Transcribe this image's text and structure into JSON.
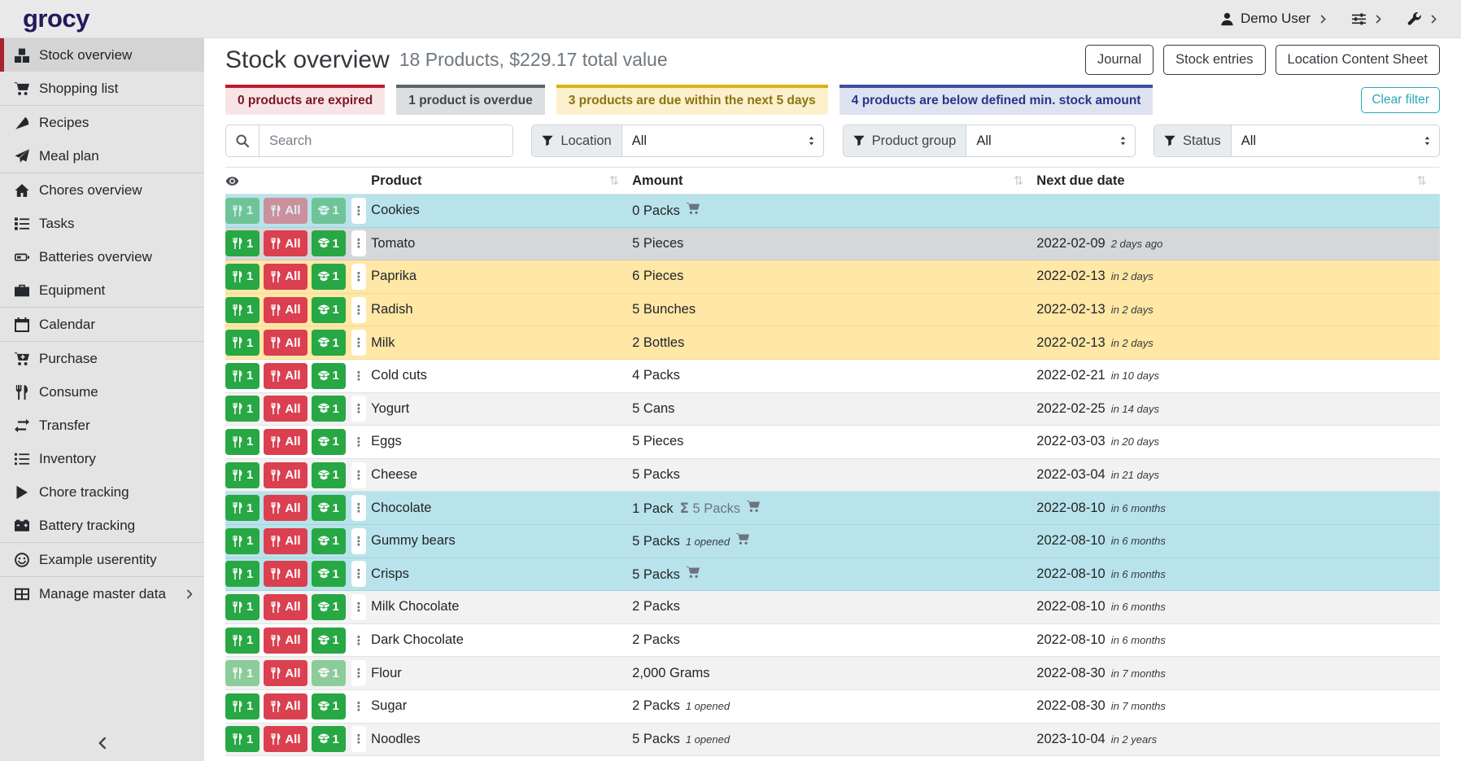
{
  "navbar": {
    "logo": "grocy",
    "user": {
      "label": "Demo User",
      "icon": "user-icon"
    },
    "menus": [
      {
        "icon": "sliders-icon"
      },
      {
        "icon": "wrench-icon"
      }
    ]
  },
  "sidebar": {
    "items": [
      {
        "label": "Stock overview",
        "icon": "boxes-icon",
        "active": true
      },
      {
        "label": "Shopping list",
        "icon": "shopping-cart-icon",
        "divider_after": true
      },
      {
        "label": "Recipes",
        "icon": "pizza-icon"
      },
      {
        "label": "Meal plan",
        "icon": "paper-plane-icon",
        "divider_after": true
      },
      {
        "label": "Chores overview",
        "icon": "home-icon"
      },
      {
        "label": "Tasks",
        "icon": "tasks-icon"
      },
      {
        "label": "Batteries overview",
        "icon": "battery-icon"
      },
      {
        "label": "Equipment",
        "icon": "toolbox-icon",
        "divider_after": true
      },
      {
        "label": "Calendar",
        "icon": "calendar-icon",
        "divider_after": true
      },
      {
        "label": "Purchase",
        "icon": "cart-plus-icon"
      },
      {
        "label": "Consume",
        "icon": "utensils-icon"
      },
      {
        "label": "Transfer",
        "icon": "transfer-icon"
      },
      {
        "label": "Inventory",
        "icon": "list-icon"
      },
      {
        "label": "Chore tracking",
        "icon": "play-icon"
      },
      {
        "label": "Battery tracking",
        "icon": "car-battery-icon",
        "divider_after": true
      },
      {
        "label": "Example userentity",
        "icon": "smiley-icon",
        "divider_after": true
      },
      {
        "label": "Manage master data",
        "icon": "table-icon",
        "chevron": true
      }
    ]
  },
  "page": {
    "title": "Stock overview",
    "subtitle": "18 Products, $229.17 total value",
    "actions": [
      "Journal",
      "Stock entries",
      "Location Content Sheet"
    ],
    "clear_filter": "Clear filter"
  },
  "status_chips": [
    {
      "label": "0 products are expired",
      "type": "expired"
    },
    {
      "label": "1 product is overdue",
      "type": "overdue"
    },
    {
      "label": "3 products are due within the next 5 days",
      "type": "due-soon"
    },
    {
      "label": "4 products are below defined min. stock amount",
      "type": "below-min"
    }
  ],
  "filters": {
    "search_placeholder": "Search",
    "selects": [
      {
        "label": "Location",
        "value": "All"
      },
      {
        "label": "Product group",
        "value": "All"
      },
      {
        "label": "Status",
        "value": "All"
      }
    ]
  },
  "table": {
    "columns": [
      "Product",
      "Amount",
      "Next due date"
    ],
    "quick_buttons": {
      "consume_one": "1",
      "consume_all": "All",
      "open_one": "1"
    },
    "sum_symbol": "Σ",
    "rows": [
      {
        "product": "Cookies",
        "amount": "0 Packs",
        "cart": true,
        "status": "below-min",
        "btn_faded": [
          true,
          true,
          true
        ]
      },
      {
        "product": "Tomato",
        "amount": "5 Pieces",
        "due": "2022-02-09",
        "due_note": "2 days ago",
        "status": "overdue"
      },
      {
        "product": "Paprika",
        "amount": "6 Pieces",
        "due": "2022-02-13",
        "due_note": "in 2 days",
        "status": "due-soon"
      },
      {
        "product": "Radish",
        "amount": "5 Bunches",
        "due": "2022-02-13",
        "due_note": "in 2 days",
        "status": "due-soon"
      },
      {
        "product": "Milk",
        "amount": "2 Bottles",
        "due": "2022-02-13",
        "due_note": "in 2 days",
        "status": "due-soon"
      },
      {
        "product": "Cold cuts",
        "amount": "4 Packs",
        "due": "2022-02-21",
        "due_note": "in 10 days"
      },
      {
        "product": "Yogurt",
        "amount": "5 Cans",
        "due": "2022-02-25",
        "due_note": "in 14 days"
      },
      {
        "product": "Eggs",
        "amount": "5 Pieces",
        "due": "2022-03-03",
        "due_note": "in 20 days"
      },
      {
        "product": "Cheese",
        "amount": "5 Packs",
        "due": "2022-03-04",
        "due_note": "in 21 days"
      },
      {
        "product": "Chocolate",
        "amount": "1 Pack",
        "sum": "5 Packs",
        "cart": true,
        "due": "2022-08-10",
        "due_note": "in 6 months",
        "status": "below-min"
      },
      {
        "product": "Gummy bears",
        "amount": "5 Packs",
        "opened": "1 opened",
        "cart": true,
        "due": "2022-08-10",
        "due_note": "in 6 months",
        "status": "below-min"
      },
      {
        "product": "Crisps",
        "amount": "5 Packs",
        "cart": true,
        "due": "2022-08-10",
        "due_note": "in 6 months",
        "status": "below-min"
      },
      {
        "product": "Milk Chocolate",
        "amount": "2 Packs",
        "due": "2022-08-10",
        "due_note": "in 6 months"
      },
      {
        "product": "Dark Chocolate",
        "amount": "2 Packs",
        "due": "2022-08-10",
        "due_note": "in 6 months"
      },
      {
        "product": "Flour",
        "amount": "2,000 Grams",
        "due": "2022-08-30",
        "due_note": "in 7 months",
        "btn_faded": [
          true,
          false,
          true
        ]
      },
      {
        "product": "Sugar",
        "amount": "2 Packs",
        "opened": "1 opened",
        "due": "2022-08-30",
        "due_note": "in 7 months"
      },
      {
        "product": "Noodles",
        "amount": "5 Packs",
        "opened": "1 opened",
        "due": "2023-10-04",
        "due_note": "in 2 years"
      }
    ]
  },
  "colors": {
    "logo": "#221a5c",
    "sidebar_active": "#a8212f",
    "success": "#28a745",
    "danger": "#db4050",
    "clear_filter": "#2ba6b8",
    "row_below_min": "#b9e3eb",
    "row_overdue": "#d5d7d9",
    "row_due_soon": "#ffe7a6",
    "chip_expired": {
      "border": "#c3182c",
      "bg": "#f8e4e7",
      "text": "#7c1623"
    },
    "chip_overdue": {
      "border": "#5f6368",
      "bg": "#dcdee0",
      "text": "#3f454b"
    },
    "chip_due_soon": {
      "border": "#d9b310",
      "bg": "#fdf0cd",
      "text": "#8a7410"
    },
    "chip_below_min": {
      "border": "#3d4d9e",
      "bg": "#dee2f1",
      "text": "#273588"
    }
  }
}
